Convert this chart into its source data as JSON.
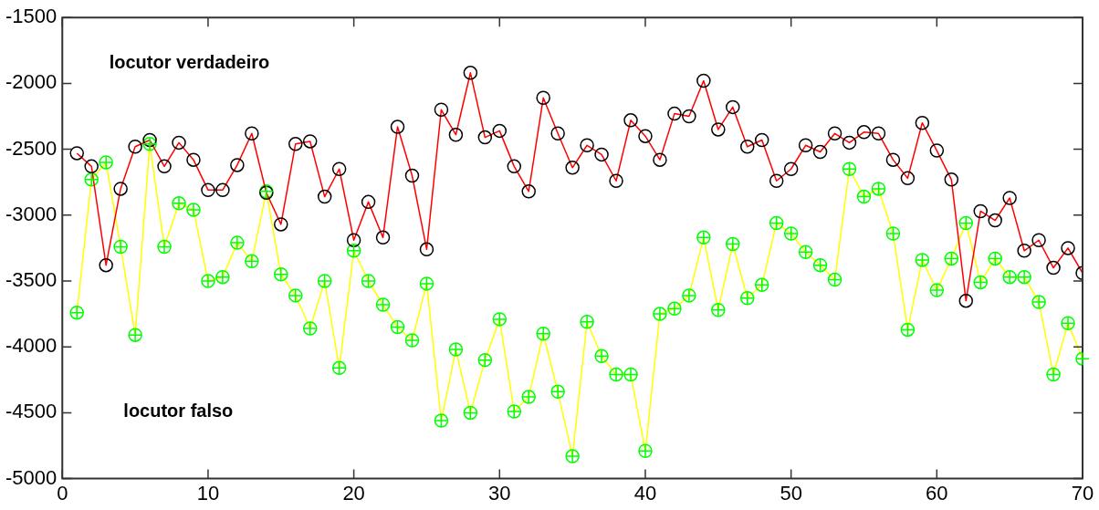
{
  "chart_data": {
    "type": "line",
    "x": [
      1,
      2,
      3,
      4,
      5,
      6,
      7,
      8,
      9,
      10,
      11,
      12,
      13,
      14,
      15,
      16,
      17,
      18,
      19,
      20,
      21,
      22,
      23,
      24,
      25,
      26,
      27,
      28,
      29,
      30,
      31,
      32,
      33,
      34,
      35,
      36,
      37,
      38,
      39,
      40,
      41,
      42,
      43,
      44,
      45,
      46,
      47,
      48,
      49,
      50,
      51,
      52,
      53,
      54,
      55,
      56,
      57,
      58,
      59,
      60,
      61,
      62,
      63,
      64,
      65,
      66,
      67,
      68,
      69,
      70
    ],
    "series": [
      {
        "color": "#ff0000",
        "values": [
          -2530,
          -2630,
          -3380,
          -2800,
          -2480,
          -2430,
          -2630,
          -2450,
          -2580,
          -2810,
          -2810,
          -2620,
          -2380,
          -2830,
          -3070,
          -2460,
          -2440,
          -2860,
          -2650,
          -3190,
          -2900,
          -3170,
          -2330,
          -2700,
          -3260,
          -2200,
          -2390,
          -1920,
          -2410,
          -2360,
          -2630,
          -2820,
          -2110,
          -2380,
          -2640,
          -2470,
          -2540,
          -2740,
          -2280,
          -2400,
          -2580,
          -2230,
          -2250,
          -1980,
          -2350,
          -2180,
          -2480,
          -2430,
          -2740,
          -2650,
          -2470,
          -2520,
          -2380,
          -2450,
          -2370,
          -2380,
          -2580,
          -2720,
          -2300,
          -2510,
          -2730,
          -3650,
          -2970,
          -3040,
          -2870,
          -3270,
          -3190,
          -3400,
          -3250,
          -3440
        ]
      },
      {
        "color": "#ffff00",
        "values": [
          -3740,
          -2730,
          -2600,
          -3240,
          -3910,
          -2460,
          -3240,
          -2910,
          -2960,
          -3500,
          -3470,
          -3210,
          -3350,
          -2820,
          -3450,
          -3610,
          -3860,
          -3500,
          -4160,
          -3270,
          -3500,
          -3680,
          -3850,
          -3950,
          -3520,
          -4560,
          -4020,
          -4500,
          -4100,
          -3790,
          -4490,
          -4380,
          -3900,
          -4340,
          -4830,
          -3810,
          -4070,
          -4210,
          -4210,
          -4790,
          -3750,
          -3710,
          -3610,
          -3170,
          -3720,
          -3220,
          -3630,
          -3530,
          -3060,
          -3140,
          -3280,
          -3380,
          -3490,
          -2650,
          -2860,
          -2800,
          -3140,
          -3870,
          -3340,
          -3570,
          -3330,
          -3060,
          -3510,
          -3330,
          -3470,
          -3470,
          -3660,
          -4210,
          -3820,
          -4090
        ]
      }
    ],
    "xlim": [
      0,
      70
    ],
    "xticks": [
      0,
      10,
      20,
      30,
      40,
      50,
      60,
      70
    ],
    "ylim": [
      -5000,
      -1500
    ],
    "yticks": [
      -5000,
      -4500,
      -4000,
      -3500,
      -3000,
      -2500,
      -2000,
      -1500
    ],
    "annotations": [
      "locutor verdadeiro",
      "locutor falso"
    ],
    "grid": false,
    "legend": false,
    "marker": "circle",
    "line_style": "solid"
  }
}
